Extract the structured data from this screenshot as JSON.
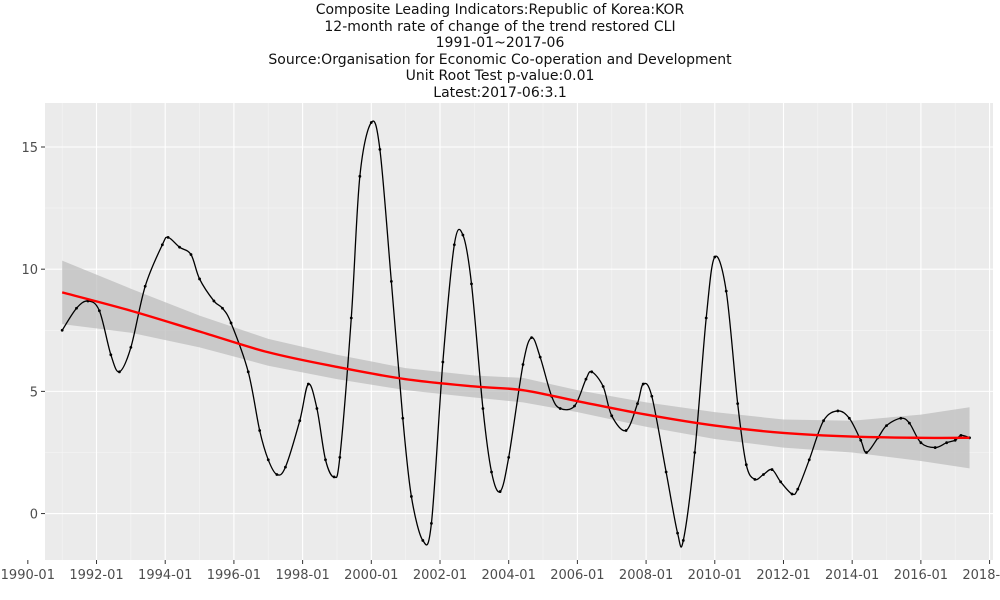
{
  "header": {
    "lines": [
      "Composite Leading Indicators:Republic of Korea:KOR",
      "12-month rate of change of the trend restored CLI",
      "1991-01~2017-06",
      "Source:Organisation for Economic Co-operation and Development",
      "Unit Root Test p-value:0.01",
      "Latest:2017-06:3.1"
    ]
  },
  "chart_data": {
    "type": "line",
    "xlabel": "",
    "ylabel": "",
    "x_range": [
      1990.5,
      2018.1
    ],
    "ylim": [
      -1.9,
      16.8
    ],
    "x_ticks": [
      "1990-01",
      "1992-01",
      "1994-01",
      "1996-01",
      "1998-01",
      "2000-01",
      "2002-01",
      "2004-01",
      "2006-01",
      "2008-01",
      "2010-01",
      "2012-01",
      "2014-01",
      "2016-01",
      "2018-01"
    ],
    "y_ticks": [
      0,
      5,
      10,
      15
    ],
    "grid": true,
    "background": "#ebebeb",
    "series": [
      {
        "role": "observed",
        "color": "#000000",
        "marker": "point",
        "points": [
          [
            "1991-01",
            7.5
          ],
          [
            "1991-06",
            8.4
          ],
          [
            "1991-10",
            8.7
          ],
          [
            "1992-02",
            8.3
          ],
          [
            "1992-06",
            6.5
          ],
          [
            "1992-09",
            5.8
          ],
          [
            "1993-01",
            6.8
          ],
          [
            "1993-06",
            9.3
          ],
          [
            "1993-12",
            11.0
          ],
          [
            "1994-02",
            11.3
          ],
          [
            "1994-06",
            10.9
          ],
          [
            "1994-10",
            10.6
          ],
          [
            "1995-01",
            9.6
          ],
          [
            "1995-06",
            8.7
          ],
          [
            "1995-09",
            8.4
          ],
          [
            "1995-12",
            7.8
          ],
          [
            "1996-06",
            5.8
          ],
          [
            "1996-10",
            3.4
          ],
          [
            "1997-01",
            2.2
          ],
          [
            "1997-04",
            1.6
          ],
          [
            "1997-07",
            1.9
          ],
          [
            "1997-12",
            3.8
          ],
          [
            "1998-03",
            5.3
          ],
          [
            "1998-06",
            4.3
          ],
          [
            "1998-09",
            2.2
          ],
          [
            "1998-12",
            1.5
          ],
          [
            "1999-02",
            2.3
          ],
          [
            "1999-06",
            8.0
          ],
          [
            "1999-09",
            13.8
          ],
          [
            "2000-01",
            16.0
          ],
          [
            "2000-04",
            14.9
          ],
          [
            "2000-08",
            9.5
          ],
          [
            "2000-12",
            3.9
          ],
          [
            "2001-03",
            0.7
          ],
          [
            "2001-07",
            -1.1
          ],
          [
            "2001-10",
            -0.4
          ],
          [
            "2002-02",
            6.2
          ],
          [
            "2002-06",
            11.0
          ],
          [
            "2002-09",
            11.4
          ],
          [
            "2002-12",
            9.4
          ],
          [
            "2003-04",
            4.3
          ],
          [
            "2003-07",
            1.7
          ],
          [
            "2003-10",
            0.9
          ],
          [
            "2004-01",
            2.3
          ],
          [
            "2004-06",
            6.1
          ],
          [
            "2004-09",
            7.2
          ],
          [
            "2004-12",
            6.4
          ],
          [
            "2005-04",
            4.8
          ],
          [
            "2005-07",
            4.3
          ],
          [
            "2005-12",
            4.4
          ],
          [
            "2006-04",
            5.5
          ],
          [
            "2006-06",
            5.8
          ],
          [
            "2006-10",
            5.2
          ],
          [
            "2007-01",
            4.0
          ],
          [
            "2007-06",
            3.4
          ],
          [
            "2007-10",
            4.5
          ],
          [
            "2007-12",
            5.3
          ],
          [
            "2008-03",
            4.8
          ],
          [
            "2008-08",
            1.7
          ],
          [
            "2008-12",
            -0.8
          ],
          [
            "2009-02",
            -1.1
          ],
          [
            "2009-06",
            2.5
          ],
          [
            "2009-10",
            8.0
          ],
          [
            "2010-01",
            10.5
          ],
          [
            "2010-05",
            9.1
          ],
          [
            "2010-09",
            4.5
          ],
          [
            "2010-12",
            2.0
          ],
          [
            "2011-03",
            1.4
          ],
          [
            "2011-06",
            1.6
          ],
          [
            "2011-09",
            1.8
          ],
          [
            "2011-12",
            1.3
          ],
          [
            "2012-04",
            0.8
          ],
          [
            "2012-06",
            1.0
          ],
          [
            "2012-10",
            2.2
          ],
          [
            "2013-03",
            3.8
          ],
          [
            "2013-08",
            4.2
          ],
          [
            "2013-12",
            3.9
          ],
          [
            "2014-04",
            3.0
          ],
          [
            "2014-06",
            2.5
          ],
          [
            "2014-10",
            3.1
          ],
          [
            "2015-01",
            3.6
          ],
          [
            "2015-06",
            3.9
          ],
          [
            "2015-09",
            3.7
          ],
          [
            "2016-01",
            2.9
          ],
          [
            "2016-06",
            2.7
          ],
          [
            "2016-10",
            2.9
          ],
          [
            "2017-01",
            3.0
          ],
          [
            "2017-03",
            3.2
          ],
          [
            "2017-06",
            3.1
          ]
        ]
      },
      {
        "role": "trend",
        "color": "#ff0000",
        "points": [
          [
            "1991-01",
            9.05
          ],
          [
            "1993-01",
            8.3
          ],
          [
            "1995-01",
            7.45
          ],
          [
            "1997-01",
            6.6
          ],
          [
            "1999-01",
            6.0
          ],
          [
            "2001-01",
            5.5
          ],
          [
            "2003-01",
            5.2
          ],
          [
            "2004-06",
            5.05
          ],
          [
            "2006-01",
            4.6
          ],
          [
            "2008-01",
            4.05
          ],
          [
            "2010-01",
            3.6
          ],
          [
            "2012-01",
            3.3
          ],
          [
            "2014-01",
            3.15
          ],
          [
            "2016-01",
            3.1
          ],
          [
            "2017-06",
            3.1
          ]
        ]
      }
    ],
    "confidence_band": {
      "color": "#bdbdbd",
      "points": [
        [
          "1991-01",
          7.75,
          10.35
        ],
        [
          "1993-01",
          7.4,
          9.2
        ],
        [
          "1995-01",
          6.8,
          8.1
        ],
        [
          "1997-01",
          6.05,
          7.15
        ],
        [
          "1999-01",
          5.5,
          6.5
        ],
        [
          "2001-01",
          5.05,
          5.95
        ],
        [
          "2003-01",
          4.75,
          5.65
        ],
        [
          "2004-06",
          4.55,
          5.55
        ],
        [
          "2006-01",
          4.15,
          5.05
        ],
        [
          "2008-01",
          3.55,
          4.55
        ],
        [
          "2010-01",
          3.05,
          4.15
        ],
        [
          "2012-01",
          2.7,
          3.85
        ],
        [
          "2014-01",
          2.5,
          3.8
        ],
        [
          "2016-01",
          2.15,
          4.05
        ],
        [
          "2017-06",
          1.85,
          4.35
        ]
      ]
    }
  }
}
